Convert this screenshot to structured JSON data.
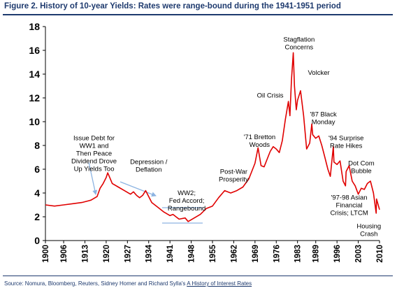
{
  "header": {
    "title": "Figure 2.  History of 10-year Yields: Rates were range-bound during the 1941-1951 period"
  },
  "footer": {
    "source_prefix": "Source: Nomura, Bloomberg, Reuters, Sidney Homer and Richard Sylla's ",
    "source_link": "A History of Interest Rates"
  },
  "colors": {
    "series": "#e00000",
    "arrows": "#8db4e2",
    "title": "#1e3a6e",
    "axis": "#000000"
  },
  "chart_data": {
    "type": "line",
    "title": "History of 10-year Yields: Rates were range-bound during the 1941-1951 period",
    "xlabel": "",
    "ylabel": "",
    "xlim": [
      1900,
      2010
    ],
    "ylim": [
      0,
      18
    ],
    "y_ticks": [
      0,
      2,
      4,
      6,
      8,
      10,
      12,
      14,
      16,
      18
    ],
    "x_ticks": [
      1900,
      1906,
      1913,
      1920,
      1927,
      1934,
      1941,
      1948,
      1955,
      1962,
      1969,
      1976,
      1983,
      1989,
      1996,
      2003,
      2010
    ],
    "grid": false,
    "legend": "none",
    "series": [
      {
        "x": [
          1900,
          1903,
          1906,
          1909,
          1912,
          1915,
          1917,
          1918,
          1919,
          1920,
          1920.5,
          1921,
          1922,
          1924,
          1926,
          1928,
          1929,
          1930,
          1931,
          1932,
          1933,
          1935,
          1937,
          1939,
          1941,
          1942,
          1944,
          1946,
          1947,
          1949,
          1951,
          1953,
          1955,
          1957,
          1959,
          1961,
          1963,
          1965,
          1967,
          1969,
          1970,
          1971,
          1972,
          1974,
          1975,
          1976,
          1977,
          1978,
          1979,
          1980,
          1980.5,
          1981,
          1981.6,
          1982,
          1982.6,
          1983,
          1984,
          1985,
          1986,
          1987,
          1987.7,
          1988,
          1989,
          1990,
          1991,
          1992,
          1993,
          1993.8,
          1994.8,
          1995,
          1996,
          1997,
          1998,
          1998.8,
          1999,
          2000,
          2001,
          2002,
          2003,
          2004,
          2005,
          2006,
          2007,
          2008,
          2008.9,
          2009,
          2010
        ],
        "values": [
          3.0,
          2.9,
          3.0,
          3.1,
          3.2,
          3.4,
          3.7,
          4.4,
          4.8,
          5.3,
          5.7,
          5.4,
          4.8,
          4.5,
          4.2,
          3.9,
          4.1,
          3.8,
          3.6,
          3.8,
          4.2,
          3.2,
          2.8,
          2.4,
          2.1,
          2.2,
          1.8,
          1.9,
          1.6,
          1.9,
          2.2,
          2.7,
          2.9,
          3.6,
          4.2,
          4.0,
          4.2,
          4.5,
          5.2,
          6.5,
          7.8,
          6.3,
          6.2,
          7.5,
          7.9,
          7.7,
          7.4,
          8.4,
          10.2,
          11.7,
          10.5,
          13.5,
          15.8,
          13.0,
          11.0,
          11.8,
          12.6,
          10.5,
          7.7,
          8.2,
          9.8,
          8.9,
          8.6,
          8.8,
          8.0,
          7.0,
          6.0,
          5.4,
          7.9,
          6.6,
          6.4,
          6.7,
          5.0,
          4.6,
          5.8,
          6.3,
          5.0,
          4.6,
          3.9,
          4.4,
          4.3,
          4.8,
          5.0,
          4.0,
          2.3,
          3.5,
          2.6
        ]
      }
    ],
    "annotations": [
      {
        "lines": [
          "Issue Debt for",
          "WW1 and",
          "Then Peace",
          "Dividend Drove",
          "Up Yields Too"
        ],
        "x": 1916,
        "y": 8.9
      },
      {
        "lines": [
          "Depression /",
          "Deflation"
        ],
        "x": 1934,
        "y": 6.9
      },
      {
        "lines": [
          "WW2;",
          "Fed Accord;",
          "Rangebound"
        ],
        "x": 1946.5,
        "y": 4.3
      },
      {
        "lines": [
          "Post-War",
          "Prosperity"
        ],
        "x": 1962,
        "y": 6.1
      },
      {
        "lines": [
          "'71 Bretton",
          "Woods"
        ],
        "x": 1970.5,
        "y": 9.0
      },
      {
        "lines": [
          "Oil Crisis"
        ],
        "x": 1974,
        "y": 12.5
      },
      {
        "lines": [
          "Stagflation",
          "Concerns"
        ],
        "x": 1983.5,
        "y": 17.2
      },
      {
        "lines": [
          "Volcker"
        ],
        "x": 1990,
        "y": 14.4
      },
      {
        "lines": [
          "'87 Black",
          "Monday"
        ],
        "x": 1991.5,
        "y": 10.9
      },
      {
        "lines": [
          "'94 Surprise",
          "Rate Hikes"
        ],
        "x": 1999,
        "y": 8.9
      },
      {
        "lines": [
          "Dot Com",
          "Bubble"
        ],
        "x": 2004,
        "y": 6.8
      },
      {
        "lines": [
          "'97-98 Asian",
          "Financial",
          "Crisis; LTCM"
        ],
        "x": 2000,
        "y": 3.9
      },
      {
        "lines": [
          "Housing",
          "Crash"
        ],
        "x": 2006.5,
        "y": 1.5
      }
    ]
  }
}
